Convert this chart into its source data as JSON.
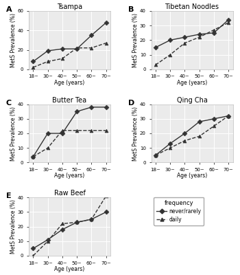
{
  "x_labels": [
    "18~",
    "30~",
    "40~",
    "50~",
    "60~",
    "70~"
  ],
  "x_vals": [
    0,
    1,
    2,
    3,
    4,
    5
  ],
  "panels": [
    {
      "title": "Tsampa",
      "label": "A",
      "never_rarely": [
        8,
        19,
        21,
        21,
        35,
        48
      ],
      "daily": [
        2,
        8,
        11,
        22,
        22,
        27
      ],
      "ylim": [
        0,
        60
      ],
      "yticks": [
        0,
        20,
        40,
        60
      ]
    },
    {
      "title": "Tibetan Noodles",
      "label": "B",
      "never_rarely": [
        15,
        20,
        22,
        24,
        25,
        34
      ],
      "daily": [
        3,
        10,
        18,
        22,
        27,
        32
      ],
      "ylim": [
        0,
        40
      ],
      "yticks": [
        0,
        10,
        20,
        30,
        40
      ]
    },
    {
      "title": "Butter Tea",
      "label": "C",
      "never_rarely": [
        4,
        20,
        20,
        35,
        38,
        38
      ],
      "daily": [
        4,
        10,
        22,
        22,
        22,
        22
      ],
      "ylim": [
        0,
        40
      ],
      "yticks": [
        0,
        10,
        20,
        30,
        40
      ]
    },
    {
      "title": "Qing Cha",
      "label": "D",
      "never_rarely": [
        5,
        13,
        20,
        28,
        30,
        32
      ],
      "daily": [
        5,
        10,
        15,
        18,
        25,
        32
      ],
      "ylim": [
        0,
        40
      ],
      "yticks": [
        0,
        10,
        20,
        30,
        40
      ]
    },
    {
      "title": "Raw Beef",
      "label": "E",
      "never_rarely": [
        5,
        11,
        18,
        23,
        25,
        30
      ],
      "daily": [
        0,
        10,
        22,
        23,
        25,
        41
      ],
      "ylim": [
        0,
        40
      ],
      "yticks": [
        0,
        10,
        20,
        30,
        40
      ]
    }
  ],
  "line_color": "#333333",
  "marker_never": "D",
  "marker_daily": "^",
  "linestyle_never": "-",
  "linestyle_daily": "--",
  "markersize": 3.5,
  "linewidth": 1.0,
  "legend_entries": [
    "never/rarely",
    "daily"
  ],
  "legend_title": "frequency",
  "ylabel": "MetS Prevalence (%)",
  "xlabel": "Age (years)",
  "bg_color": "#ebebeb",
  "grid_color": "#ffffff",
  "title_fontsize": 7,
  "label_fontsize": 5.5,
  "tick_fontsize": 5,
  "panel_label_fontsize": 8,
  "legend_fontsize": 5.5,
  "legend_title_fontsize": 6
}
